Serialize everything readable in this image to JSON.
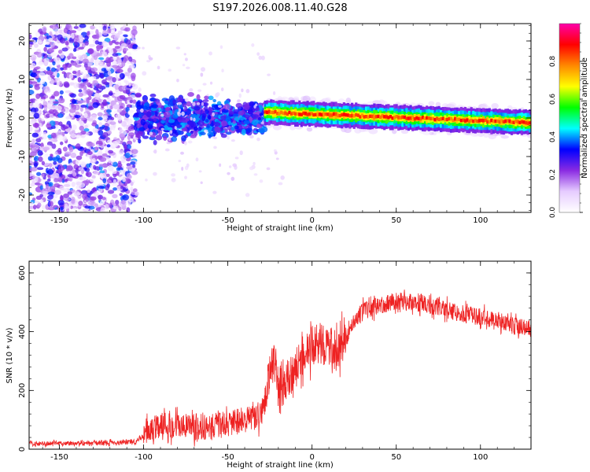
{
  "title": "S197.2026.008.11.40.G28",
  "chart_data": [
    {
      "type": "heatmap",
      "name": "spectrogram",
      "xlabel": "Height of straight line (km)",
      "ylabel": "Frequency (Hz)",
      "xlim": [
        -168,
        130
      ],
      "ylim": [
        -24.5,
        24.5
      ],
      "xticks": [
        -150,
        -100,
        -50,
        0,
        50,
        100
      ],
      "yticks": [
        -20,
        -10,
        0,
        10,
        20
      ],
      "colorbar": {
        "label": "Normalized spectral amplitude",
        "range": [
          0,
          1
        ],
        "ticks": [
          0.0,
          0.2,
          0.4,
          0.6,
          0.8
        ],
        "colors": [
          "#ffffff",
          "#e6ccff",
          "#8a2be2",
          "#0000ff",
          "#00ffff",
          "#00ff00",
          "#ffff00",
          "#ff8800",
          "#ff0000",
          "#ff00aa"
        ]
      },
      "regions": [
        {
          "label": "noise",
          "x_range": [
            -168,
            -105
          ],
          "freq_spread_hz": 24,
          "amplitude": 0.15
        },
        {
          "label": "transition",
          "x_range": [
            -105,
            -28
          ],
          "freq_spread_hz": 7,
          "amplitude": 0.25
        },
        {
          "label": "tone",
          "x_range": [
            -28,
            130
          ],
          "freq_hz_start": 1.5,
          "freq_hz_end": -1.2,
          "amplitude": 0.85
        }
      ]
    },
    {
      "type": "line",
      "name": "snr",
      "xlabel": "Height of straight line (km)",
      "ylabel": "SNR (10 * v/v)",
      "xlim": [
        -168,
        130
      ],
      "ylim": [
        0,
        640
      ],
      "xticks": [
        -150,
        -100,
        -50,
        0,
        50,
        100
      ],
      "yticks": [
        0,
        200,
        400,
        600
      ],
      "color": "#ee2222",
      "x": [
        -168,
        -150,
        -120,
        -105,
        -100,
        -95,
        -90,
        -80,
        -70,
        -60,
        -50,
        -40,
        -30,
        -25,
        -22,
        -20,
        -15,
        -10,
        -5,
        0,
        5,
        10,
        15,
        20,
        25,
        30,
        40,
        50,
        60,
        70,
        80,
        90,
        100,
        110,
        120,
        130
      ],
      "values": [
        18,
        20,
        22,
        25,
        45,
        70,
        85,
        80,
        75,
        78,
        85,
        100,
        115,
        260,
        300,
        210,
        230,
        270,
        320,
        350,
        360,
        350,
        330,
        390,
        440,
        470,
        490,
        505,
        500,
        490,
        475,
        460,
        450,
        440,
        420,
        410
      ]
    }
  ]
}
